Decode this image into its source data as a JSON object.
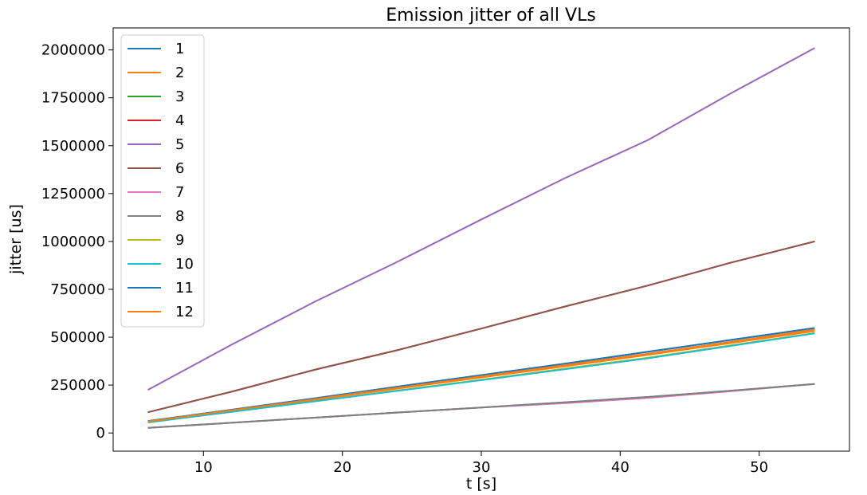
{
  "chart_data": {
    "type": "line",
    "title": "Emission jitter of all VLs",
    "xlabel": "t [s]",
    "ylabel": "jitter [us]",
    "xlim": [
      3.5,
      56.5
    ],
    "ylim": [
      -95000,
      2115000
    ],
    "xticks": [
      10,
      20,
      30,
      40,
      50
    ],
    "xtick_labels": [
      "10",
      "20",
      "30",
      "40",
      "50"
    ],
    "yticks": [
      0,
      250000,
      500000,
      750000,
      1000000,
      1250000,
      1500000,
      1750000,
      2000000
    ],
    "ytick_labels": [
      "0",
      "250000",
      "500000",
      "750000",
      "1000000",
      "1250000",
      "1500000",
      "1750000",
      "2000000"
    ],
    "grid": false,
    "legend_position": "top-left",
    "x": [
      6,
      12,
      18,
      24,
      30,
      36,
      42,
      48,
      54
    ],
    "series": [
      {
        "name": "1",
        "color": "#1f77b4",
        "values": [
          62000,
          121000,
          181000,
          242000,
          302000,
          362000,
          424000,
          486000,
          548000
        ]
      },
      {
        "name": "2",
        "color": "#ff7f0e",
        "values": [
          58000,
          115000,
          173000,
          232000,
          290000,
          348000,
          408000,
          470000,
          532000
        ]
      },
      {
        "name": "3",
        "color": "#2ca02c",
        "values": [
          27000,
          53000,
          80000,
          107000,
          133000,
          160000,
          188000,
          221000,
          256000
        ]
      },
      {
        "name": "4",
        "color": "#d62728",
        "values": [
          108000,
          215000,
          330000,
          433000,
          545000,
          660000,
          770000,
          890000,
          1000000
        ]
      },
      {
        "name": "5",
        "color": "#9467bd",
        "values": [
          225000,
          460000,
          685000,
          895000,
          1115000,
          1330000,
          1530000,
          1775000,
          2010000
        ]
      },
      {
        "name": "6",
        "color": "#8c564b",
        "values": [
          108000,
          215000,
          330000,
          433000,
          545000,
          660000,
          770000,
          890000,
          1000000
        ]
      },
      {
        "name": "7",
        "color": "#e377c2",
        "values": [
          27000,
          53000,
          80000,
          107000,
          133000,
          155000,
          183000,
          218000,
          256000
        ]
      },
      {
        "name": "8",
        "color": "#7f7f7f",
        "values": [
          27000,
          53000,
          80000,
          107000,
          133000,
          160000,
          188000,
          221000,
          256000
        ]
      },
      {
        "name": "9",
        "color": "#bcbd22",
        "values": [
          55000,
          110000,
          165000,
          222000,
          278000,
          336000,
          393000,
          458000,
          522000
        ]
      },
      {
        "name": "10",
        "color": "#17becf",
        "values": [
          55000,
          110000,
          165000,
          220000,
          276000,
          333000,
          390000,
          455000,
          520000
        ]
      },
      {
        "name": "11",
        "color": "#1f77b4",
        "values": [
          62000,
          121000,
          181000,
          242000,
          302000,
          362000,
          424000,
          486000,
          548000
        ]
      },
      {
        "name": "12",
        "color": "#ff7f0e",
        "values": [
          60000,
          118000,
          176000,
          236000,
          295000,
          354000,
          414000,
          476000,
          540000
        ]
      }
    ]
  }
}
